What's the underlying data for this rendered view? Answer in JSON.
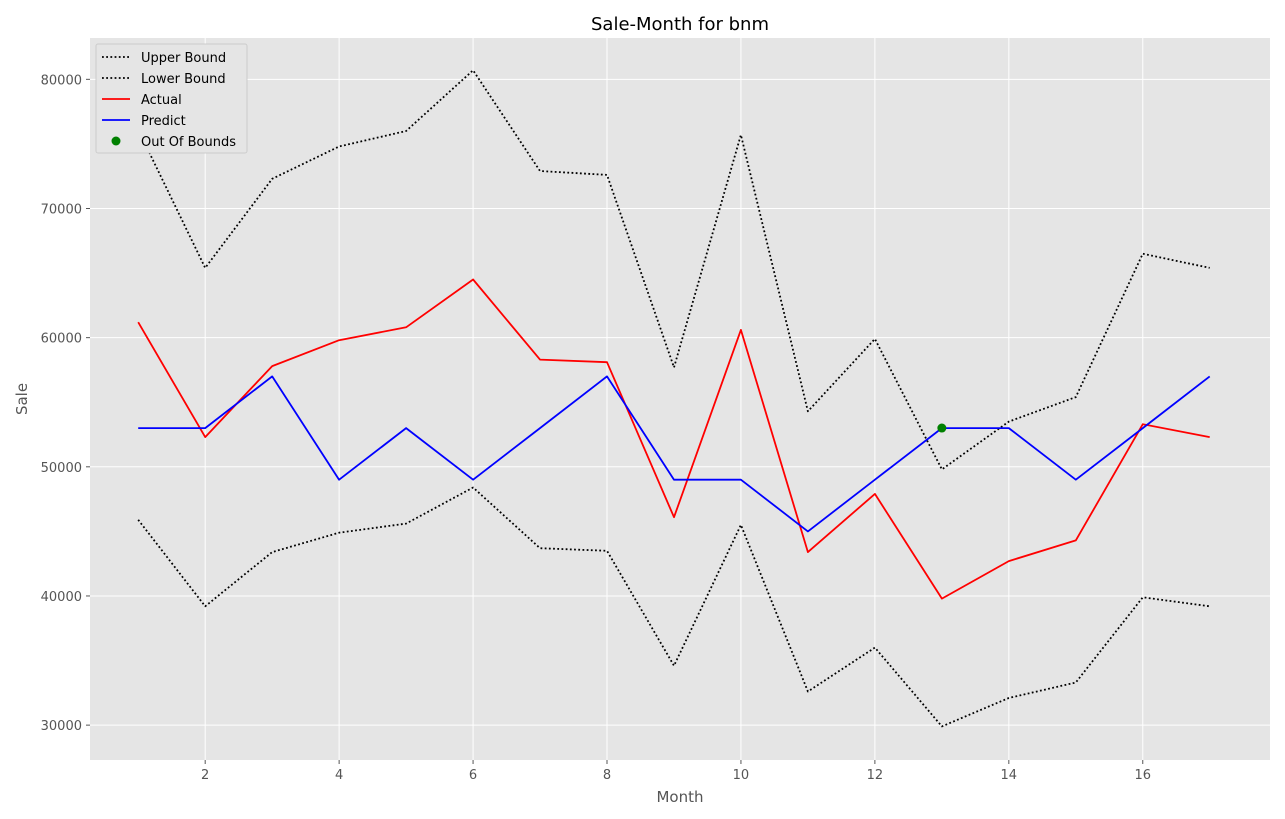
{
  "chart_data": {
    "type": "line",
    "title": "Sale-Month for bnm",
    "xlabel": "Month",
    "ylabel": "Sale",
    "xlim": [
      0.28,
      17.9
    ],
    "ylim": [
      27300,
      83200
    ],
    "xticks": [
      2,
      4,
      6,
      8,
      10,
      12,
      14,
      16
    ],
    "yticks": [
      30000,
      40000,
      50000,
      60000,
      70000,
      80000
    ],
    "x": [
      1,
      2,
      3,
      4,
      5,
      6,
      7,
      8,
      9,
      10,
      11,
      12,
      13,
      14,
      15,
      16,
      17
    ],
    "series": [
      {
        "name": "Upper Bound",
        "color": "#000000",
        "style": "dotted",
        "values": [
          76100,
          65400,
          72300,
          74800,
          76000,
          80700,
          72900,
          72600,
          57700,
          75700,
          54300,
          59900,
          49800,
          53500,
          55400,
          66500,
          65400
        ]
      },
      {
        "name": "Lower Bound",
        "color": "#000000",
        "style": "dotted",
        "values": [
          45900,
          39200,
          43400,
          44900,
          45600,
          48400,
          43700,
          43500,
          34600,
          45500,
          32600,
          36000,
          29900,
          32100,
          33300,
          39900,
          39200
        ]
      },
      {
        "name": "Actual",
        "color": "#ff0000",
        "style": "solid",
        "values": [
          61200,
          52300,
          57800,
          59800,
          60800,
          64500,
          58300,
          58100,
          46100,
          60600,
          43400,
          47900,
          39800,
          42700,
          44300,
          53300,
          52300
        ]
      },
      {
        "name": "Predict",
        "color": "#0000ff",
        "style": "solid",
        "values": [
          53000,
          53000,
          57000,
          49000,
          53000,
          49000,
          53000,
          57000,
          49000,
          49000,
          45000,
          49000,
          53000,
          53000,
          49000,
          53000,
          57000
        ]
      },
      {
        "name": "Out Of Bounds",
        "color": "#008000",
        "style": "marker",
        "points": [
          {
            "x": 13,
            "y": 53000
          }
        ]
      }
    ],
    "grid": true,
    "legend": "top-left"
  }
}
